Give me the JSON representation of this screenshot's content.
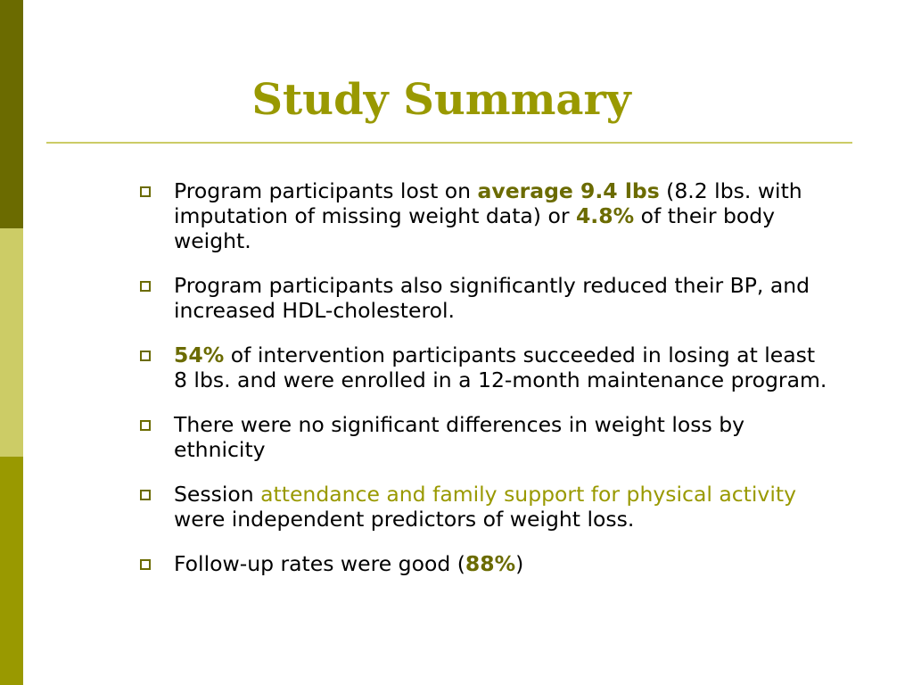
{
  "colors": {
    "bar_top": "#6b6b00",
    "bar_mid": "#cccc66",
    "bar_bottom": "#999900",
    "title": "#999900",
    "rule": "#cccc66",
    "emphasis": "#6b6b00",
    "highlight": "#999900"
  },
  "title": "Study Summary",
  "bullets": [
    {
      "pre": "Program participants lost on ",
      "emph": "average 9.4 lbs",
      "mid": " (8.2 lbs. with imputation of missing weight data) or ",
      "emph2": "4.8%",
      "post": " of their body weight."
    },
    {
      "text": "Program participants also significantly reduced their BP, and increased HDL-cholesterol."
    },
    {
      "emph": "54%",
      "post": " of intervention participants succeeded in losing at least 8 lbs. and were enrolled in a 12-month maintenance program."
    },
    {
      "text": "There were no significant differences in weight loss by ethnicity"
    },
    {
      "pre": "Session ",
      "highlight": "attendance and family support for physical activity",
      "post": " were independent predictors of weight loss."
    },
    {
      "pre": "Follow-up rates were good (",
      "emph": "88%",
      "post": ")"
    }
  ],
  "bullet_icon": "hollow-square-icon"
}
